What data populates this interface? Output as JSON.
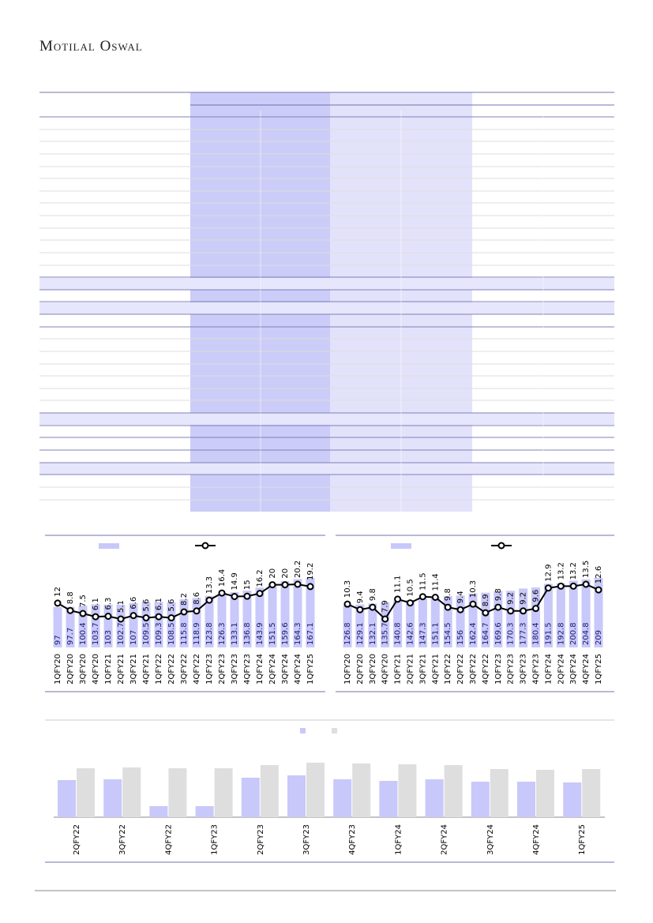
{
  "header": {
    "title": "Motilal Oswal"
  },
  "chart_data": [
    {
      "type": "combo",
      "categories": [
        "1QFY20",
        "2QFY20",
        "3QFY20",
        "4QFY20",
        "1QFY21",
        "2QFY21",
        "3QFY21",
        "4QFY21",
        "1QFY22",
        "2QFY22",
        "3QFY22",
        "4QFY22",
        "1QFY23",
        "2QFY23",
        "3QFY23",
        "4QFY23",
        "1QFY24",
        "2QFY24",
        "3QFY24",
        "4QFY24",
        "1QFY25"
      ],
      "series": [
        {
          "style": "bar",
          "color": "#c8c8fa",
          "values": [
            97.0,
            97.7,
            100.4,
            103.7,
            103.0,
            102.7,
            107.0,
            109.5,
            109.3,
            108.5,
            115.8,
            118.9,
            123.8,
            126.3,
            133.1,
            136.8,
            143.9,
            151.5,
            159.6,
            164.3,
            167.1
          ]
        },
        {
          "style": "line",
          "axis": "y2",
          "color": "#000000",
          "values": [
            12.0,
            8.8,
            7.5,
            6.1,
            6.3,
            5.1,
            6.6,
            5.6,
            6.1,
            5.6,
            8.2,
            8.6,
            13.3,
            16.4,
            14.9,
            15.0,
            16.2,
            20.0,
            20.0,
            20.2,
            19.2
          ]
        }
      ]
    },
    {
      "type": "combo",
      "categories": [
        "1QFY20",
        "2QFY20",
        "3QFY20",
        "4QFY20",
        "1QFY21",
        "2QFY21",
        "3QFY21",
        "4QFY21",
        "1QFY22",
        "2QFY22",
        "3QFY22",
        "4QFY22",
        "1QFY23",
        "2QFY23",
        "3QFY23",
        "4QFY23",
        "1QFY24",
        "2QFY24",
        "3QFY24",
        "4QFY24",
        "1QFY25"
      ],
      "series": [
        {
          "style": "bar",
          "color": "#c8c8fa",
          "values": [
            126.8,
            129.1,
            132.1,
            135.7,
            140.8,
            142.6,
            147.3,
            151.1,
            154.5,
            156.0,
            162.4,
            164.7,
            169.6,
            170.3,
            177.3,
            180.4,
            191.5,
            192.8,
            200.8,
            204.8,
            209.0
          ]
        },
        {
          "style": "line",
          "axis": "y2",
          "color": "#000000",
          "values": [
            10.3,
            9.4,
            9.8,
            7.9,
            11.1,
            10.5,
            11.5,
            11.4,
            9.8,
            9.4,
            10.3,
            8.9,
            9.8,
            9.2,
            9.2,
            9.6,
            12.9,
            13.2,
            13.2,
            13.5,
            12.6
          ]
        }
      ]
    },
    {
      "type": "bar",
      "categories": [
        "2QFY22",
        "3QFY22",
        "4QFY22",
        "1QFY23",
        "2QFY23",
        "3QFY23",
        "4QFY23",
        "1QFY24",
        "2QFY24",
        "3QFY24",
        "4QFY24",
        "1QFY25"
      ],
      "series": [
        {
          "color": "#c8c8fa",
          "values": [
            47,
            48,
            14,
            14,
            50,
            53,
            48,
            46,
            48,
            45,
            45,
            44
          ]
        },
        {
          "color": "#dedede",
          "values": [
            62,
            63,
            62,
            62,
            66,
            69,
            68,
            67,
            66,
            61,
            60,
            61
          ]
        }
      ]
    }
  ]
}
